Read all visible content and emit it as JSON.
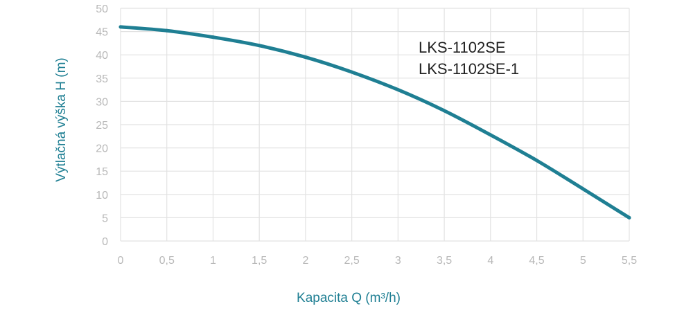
{
  "chart_data": {
    "type": "line",
    "title": "",
    "xlabel": "Kapacita Q (m³/h)",
    "ylabel": "Výtlačná výška H (m)",
    "xlim": [
      0,
      5.5
    ],
    "ylim": [
      0,
      50
    ],
    "x_ticks": [
      0,
      0.5,
      1,
      1.5,
      2,
      2.5,
      3,
      3.5,
      4,
      4.5,
      5,
      5.5
    ],
    "x_tick_labels": [
      "0",
      "0,5",
      "1",
      "1,5",
      "2",
      "2,5",
      "3",
      "3,5",
      "4",
      "4,5",
      "5",
      "5,5"
    ],
    "y_ticks": [
      0,
      5,
      10,
      15,
      20,
      25,
      30,
      35,
      40,
      45,
      50
    ],
    "y_tick_labels": [
      "0",
      "5",
      "10",
      "15",
      "20",
      "25",
      "30",
      "35",
      "40",
      "45",
      "50"
    ],
    "grid": "vertical and horizontal",
    "legend": "none",
    "annotations": [
      "LKS-1102SE",
      "LKS-1102SE-1"
    ],
    "series": [
      {
        "x": [
          0,
          0.5,
          1,
          1.5,
          2,
          2.5,
          3,
          3.5,
          4,
          4.5,
          5,
          5.5
        ],
        "y": [
          46,
          45.2,
          43.8,
          42,
          39.5,
          36.3,
          32.5,
          28,
          22.8,
          17.3,
          11.2,
          5
        ],
        "color": "#1f7f93"
      }
    ]
  }
}
